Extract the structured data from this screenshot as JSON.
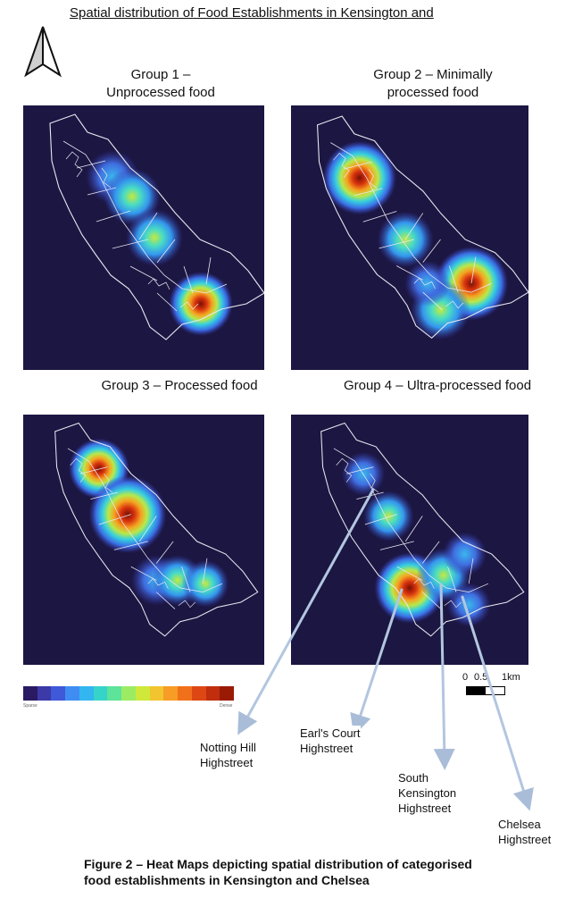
{
  "title": "Spatial distribution of Food Establishments in Kensington and",
  "north_arrow": "north-arrow-icon",
  "groups": [
    {
      "label_line1": "Group 1 –",
      "label_line2": "Unprocessed food"
    },
    {
      "label_line1": "Group 2 – Minimally",
      "label_line2": "processed food"
    },
    {
      "label_line1": "Group 3 – Processed food",
      "label_line2": ""
    },
    {
      "label_line1": "Group 4 – Ultra-processed food",
      "label_line2": ""
    }
  ],
  "legend": {
    "colors": [
      "#2a1a63",
      "#3b3aa8",
      "#3f59d8",
      "#3f8df2",
      "#33b5ef",
      "#36d4c8",
      "#5de39a",
      "#9cec63",
      "#cfe83a",
      "#f2c430",
      "#f79c25",
      "#f1711b",
      "#dd4714",
      "#c02e0d",
      "#9a1a05"
    ],
    "low_label": "Sparse",
    "high_label": "Dense"
  },
  "scale": {
    "ticks": [
      "0",
      "0.5",
      "1km"
    ]
  },
  "callouts": [
    {
      "line1": "Notting Hill",
      "line2": "Highstreet"
    },
    {
      "line1": "Earl's Court",
      "line2": "Highstreet"
    },
    {
      "line1": "South",
      "line2": "Kensington",
      "line3": "Highstreet"
    },
    {
      "line1": "Chelsea",
      "line2": "Highstreet"
    }
  ],
  "caption": "Figure 2 – Heat Maps depicting spatial distribution of categorised food establishments in Kensington and Chelsea"
}
